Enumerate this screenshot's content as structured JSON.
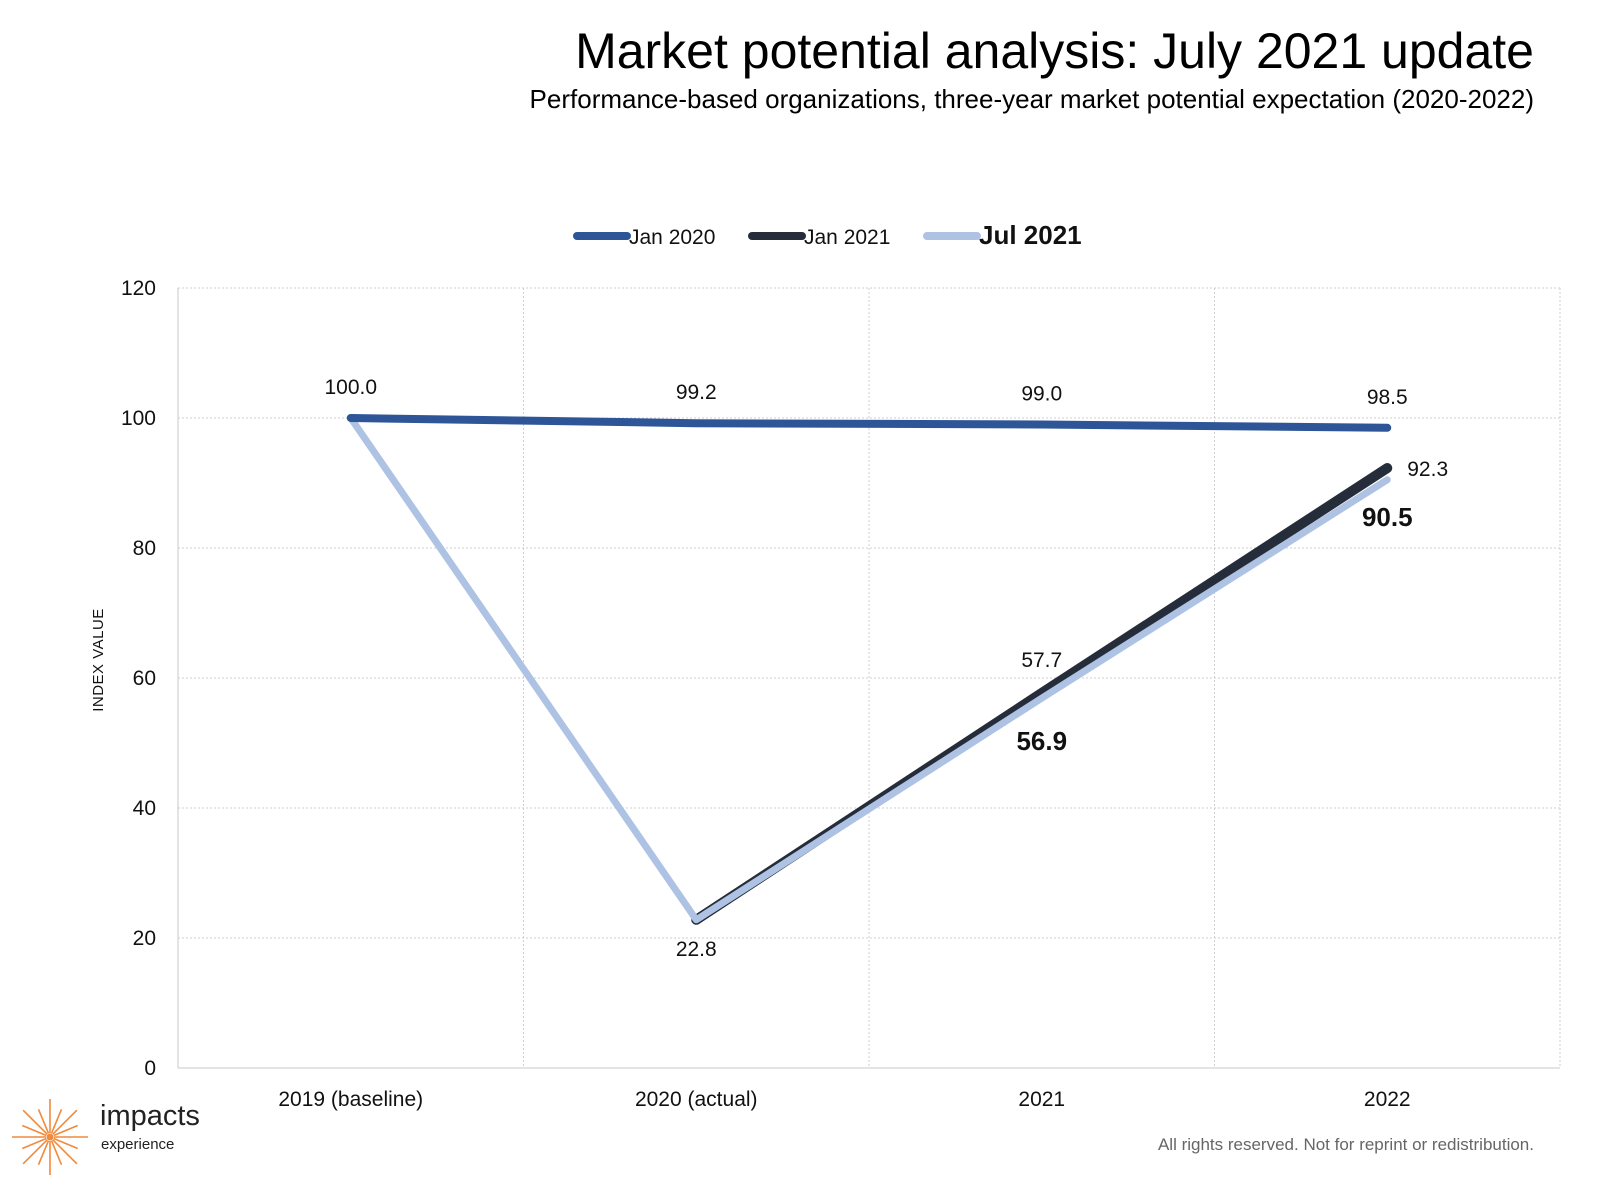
{
  "header": {
    "title": "Market potential analysis: July 2021 update",
    "subtitle": "Performance-based organizations, three-year market potential expectation (2020-2022)"
  },
  "chart_data": {
    "type": "line",
    "categories": [
      "2019 (baseline)",
      "2020 (actual)",
      "2021",
      "2022"
    ],
    "ylabel": "INDEX VALUE",
    "xlabel": "",
    "ylim": [
      0,
      120
    ],
    "yticks": [
      0,
      20,
      40,
      60,
      80,
      100,
      120
    ],
    "grid": true,
    "legend_position": "top-center",
    "series": [
      {
        "name": "Jan 2020",
        "values": [
          100.0,
          99.2,
          99.0,
          98.5
        ],
        "color": "#2E5597",
        "labels": [
          "100.0",
          "99.2",
          "99.0",
          "98.5"
        ]
      },
      {
        "name": "Jan 2021",
        "values": [
          100.0,
          22.8,
          57.7,
          92.3
        ],
        "color": "#262D3A",
        "labels": [
          "",
          "22.8",
          "57.7",
          "92.3"
        ]
      },
      {
        "name": "Jul 2021",
        "values": [
          100.0,
          22.8,
          56.9,
          90.5
        ],
        "color": "#AEC3E4",
        "labels": [
          "",
          "",
          "56.9",
          "90.5"
        ],
        "bold": true
      }
    ]
  },
  "branding": {
    "logo_word": "impacts",
    "logo_sub": "experience",
    "logo_color": "#F08A3C"
  },
  "footer": {
    "rights": "All rights reserved. Not for reprint or redistribution."
  }
}
